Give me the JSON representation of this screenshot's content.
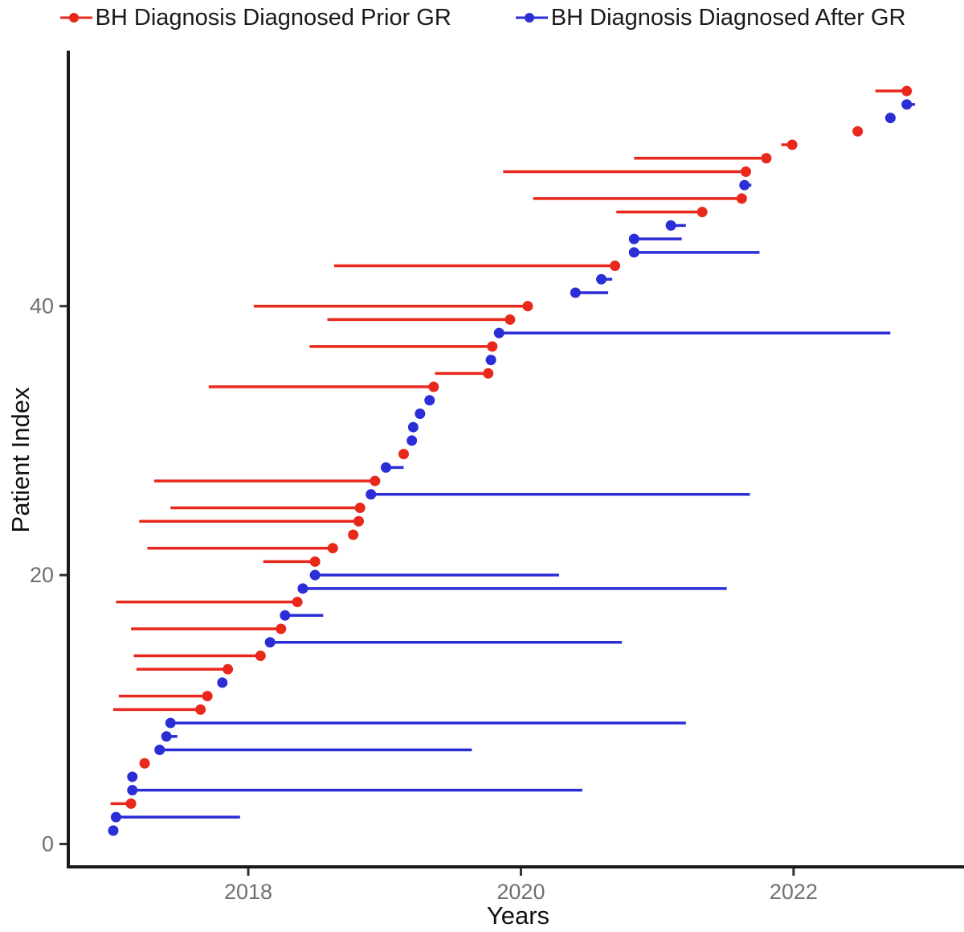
{
  "legend": {
    "items": [
      {
        "label": "BH Diagnosis Diagnosed Prior GR",
        "color": "#e9281c"
      },
      {
        "label": "BH Diagnosis Diagnosed After GR",
        "color": "#2b2ed7"
      }
    ]
  },
  "chart_data": {
    "type": "scatter",
    "subtype": "lollipop-timeline",
    "title": "",
    "xlabel": "Years",
    "ylabel": "Patient Index",
    "x_ticks": [
      2018,
      2020,
      2022
    ],
    "y_ticks": [
      0,
      20,
      40
    ],
    "xlim": [
      2016.68,
      2023.25
    ],
    "ylim": [
      -1.7,
      59
    ],
    "grid": "off",
    "legend_position": "top",
    "colors": {
      "prior": "#e9281c",
      "after": "#2b2ed7"
    },
    "series": [
      {
        "name": "BH Diagnosis Diagnosed Prior GR",
        "group": "prior",
        "color": "#e9281c",
        "marker": "dot-at-line-end"
      },
      {
        "name": "BH Diagnosis Diagnosed After GR",
        "group": "after",
        "color": "#2b2ed7",
        "marker": "dot-at-line-start"
      }
    ],
    "patients": [
      {
        "i": 1,
        "g": "after",
        "dot": 2017.01,
        "tail": 2017.01
      },
      {
        "i": 2,
        "g": "after",
        "dot": 2017.03,
        "tail": 2017.94
      },
      {
        "i": 3,
        "g": "prior",
        "dot": 2017.14,
        "tail": 2016.99
      },
      {
        "i": 4,
        "g": "after",
        "dot": 2017.15,
        "tail": 2020.45
      },
      {
        "i": 5,
        "g": "after",
        "dot": 2017.15,
        "tail": 2017.15
      },
      {
        "i": 6,
        "g": "prior",
        "dot": 2017.24,
        "tail": 2017.24
      },
      {
        "i": 7,
        "g": "after",
        "dot": 2017.35,
        "tail": 2019.64
      },
      {
        "i": 8,
        "g": "after",
        "dot": 2017.4,
        "tail": 2017.48
      },
      {
        "i": 9,
        "g": "after",
        "dot": 2017.43,
        "tail": 2021.21
      },
      {
        "i": 10,
        "g": "prior",
        "dot": 2017.65,
        "tail": 2017.01
      },
      {
        "i": 11,
        "g": "prior",
        "dot": 2017.7,
        "tail": 2017.05
      },
      {
        "i": 12,
        "g": "after",
        "dot": 2017.81,
        "tail": 2017.81
      },
      {
        "i": 13,
        "g": "prior",
        "dot": 2017.85,
        "tail": 2017.18
      },
      {
        "i": 14,
        "g": "prior",
        "dot": 2018.09,
        "tail": 2017.16
      },
      {
        "i": 15,
        "g": "after",
        "dot": 2018.16,
        "tail": 2020.74
      },
      {
        "i": 16,
        "g": "prior",
        "dot": 2018.24,
        "tail": 2017.14
      },
      {
        "i": 17,
        "g": "after",
        "dot": 2018.27,
        "tail": 2018.55
      },
      {
        "i": 18,
        "g": "prior",
        "dot": 2018.36,
        "tail": 2017.03
      },
      {
        "i": 19,
        "g": "after",
        "dot": 2018.4,
        "tail": 2021.51
      },
      {
        "i": 20,
        "g": "after",
        "dot": 2018.49,
        "tail": 2020.28
      },
      {
        "i": 21,
        "g": "prior",
        "dot": 2018.49,
        "tail": 2018.11
      },
      {
        "i": 22,
        "g": "prior",
        "dot": 2018.62,
        "tail": 2017.26
      },
      {
        "i": 23,
        "g": "prior",
        "dot": 2018.77,
        "tail": 2018.77
      },
      {
        "i": 24,
        "g": "prior",
        "dot": 2018.81,
        "tail": 2017.2
      },
      {
        "i": 25,
        "g": "prior",
        "dot": 2018.82,
        "tail": 2017.43
      },
      {
        "i": 26,
        "g": "after",
        "dot": 2018.9,
        "tail": 2021.68
      },
      {
        "i": 27,
        "g": "prior",
        "dot": 2018.93,
        "tail": 2017.31
      },
      {
        "i": 28,
        "g": "after",
        "dot": 2019.01,
        "tail": 2019.14
      },
      {
        "i": 29,
        "g": "prior",
        "dot": 2019.14,
        "tail": 2019.14
      },
      {
        "i": 30,
        "g": "after",
        "dot": 2019.2,
        "tail": 2019.2
      },
      {
        "i": 31,
        "g": "after",
        "dot": 2019.21,
        "tail": 2019.21
      },
      {
        "i": 32,
        "g": "after",
        "dot": 2019.26,
        "tail": 2019.26
      },
      {
        "i": 33,
        "g": "after",
        "dot": 2019.33,
        "tail": 2019.33
      },
      {
        "i": 34,
        "g": "prior",
        "dot": 2019.36,
        "tail": 2017.71
      },
      {
        "i": 35,
        "g": "prior",
        "dot": 2019.76,
        "tail": 2019.37
      },
      {
        "i": 36,
        "g": "after",
        "dot": 2019.78,
        "tail": 2019.78
      },
      {
        "i": 37,
        "g": "prior",
        "dot": 2019.79,
        "tail": 2018.45
      },
      {
        "i": 38,
        "g": "after",
        "dot": 2019.84,
        "tail": 2022.71
      },
      {
        "i": 39,
        "g": "prior",
        "dot": 2019.92,
        "tail": 2018.58
      },
      {
        "i": 40,
        "g": "prior",
        "dot": 2020.05,
        "tail": 2018.04
      },
      {
        "i": 41,
        "g": "after",
        "dot": 2020.4,
        "tail": 2020.64
      },
      {
        "i": 42,
        "g": "after",
        "dot": 2020.59,
        "tail": 2020.67
      },
      {
        "i": 43,
        "g": "prior",
        "dot": 2020.69,
        "tail": 2018.63
      },
      {
        "i": 44,
        "g": "after",
        "dot": 2020.83,
        "tail": 2021.75
      },
      {
        "i": 45,
        "g": "after",
        "dot": 2020.83,
        "tail": 2021.18
      },
      {
        "i": 46,
        "g": "after",
        "dot": 2021.1,
        "tail": 2021.21
      },
      {
        "i": 47,
        "g": "prior",
        "dot": 2021.33,
        "tail": 2020.7
      },
      {
        "i": 48,
        "g": "prior",
        "dot": 2021.62,
        "tail": 2020.09
      },
      {
        "i": 49,
        "g": "after",
        "dot": 2021.64,
        "tail": 2021.69
      },
      {
        "i": 50,
        "g": "prior",
        "dot": 2021.65,
        "tail": 2019.87
      },
      {
        "i": 51,
        "g": "prior",
        "dot": 2021.8,
        "tail": 2020.83
      },
      {
        "i": 52,
        "g": "prior",
        "dot": 2021.99,
        "tail": 2021.91
      },
      {
        "i": 53,
        "g": "prior",
        "dot": 2022.47,
        "tail": 2022.47
      },
      {
        "i": 54,
        "g": "after",
        "dot": 2022.71,
        "tail": 2022.71
      },
      {
        "i": 55,
        "g": "after",
        "dot": 2022.83,
        "tail": 2022.89
      },
      {
        "i": 56,
        "g": "prior",
        "dot": 2022.83,
        "tail": 2022.6
      }
    ]
  }
}
